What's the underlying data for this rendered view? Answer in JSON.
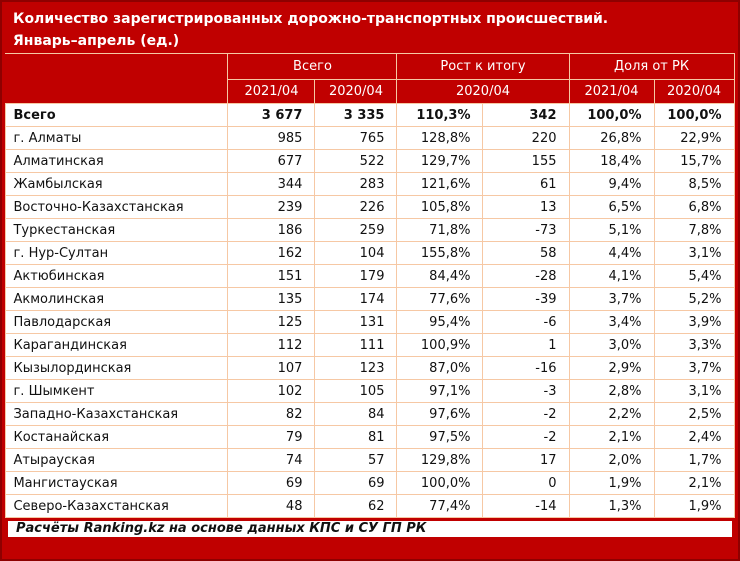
{
  "title": {
    "line1": "Количество зарегистрированных дорожно-транспортных происшествий.",
    "line2": "Январь–апрель (ед.)"
  },
  "chart_data": {
    "type": "table",
    "title": "Количество зарегистрированных дорожно-транспортных происшествий.",
    "subtitle": "Январь–апрель (ед.)",
    "column_groups": [
      {
        "label": "Всего",
        "span": 2
      },
      {
        "label": "Рост к итогу",
        "span": 2
      },
      {
        "label": "Доля от РК",
        "span": 2
      }
    ],
    "sub_headers": [
      "2021/04",
      "2020/04",
      "2020/04",
      "2021/04",
      "2020/04"
    ],
    "rows": [
      {
        "region": "Всего",
        "total_2021": "3 677",
        "total_2020": "3 335",
        "growth_pct": "110,3%",
        "growth_abs": "342",
        "share_2021": "100,0%",
        "share_2020": "100,0%",
        "emphasis": true
      },
      {
        "region": "г. Алматы",
        "total_2021": "985",
        "total_2020": "765",
        "growth_pct": "128,8%",
        "growth_abs": "220",
        "share_2021": "26,8%",
        "share_2020": "22,9%",
        "emphasis": false
      },
      {
        "region": "Алматинская",
        "total_2021": "677",
        "total_2020": "522",
        "growth_pct": "129,7%",
        "growth_abs": "155",
        "share_2021": "18,4%",
        "share_2020": "15,7%",
        "emphasis": false
      },
      {
        "region": "Жамбылская",
        "total_2021": "344",
        "total_2020": "283",
        "growth_pct": "121,6%",
        "growth_abs": "61",
        "share_2021": "9,4%",
        "share_2020": "8,5%",
        "emphasis": false
      },
      {
        "region": "Восточно-Казахстанская",
        "total_2021": "239",
        "total_2020": "226",
        "growth_pct": "105,8%",
        "growth_abs": "13",
        "share_2021": "6,5%",
        "share_2020": "6,8%",
        "emphasis": false
      },
      {
        "region": "Туркестанская",
        "total_2021": "186",
        "total_2020": "259",
        "growth_pct": "71,8%",
        "growth_abs": "-73",
        "share_2021": "5,1%",
        "share_2020": "7,8%",
        "emphasis": false
      },
      {
        "region": "г. Нур-Султан",
        "total_2021": "162",
        "total_2020": "104",
        "growth_pct": "155,8%",
        "growth_abs": "58",
        "share_2021": "4,4%",
        "share_2020": "3,1%",
        "emphasis": false
      },
      {
        "region": "Актюбинская",
        "total_2021": "151",
        "total_2020": "179",
        "growth_pct": "84,4%",
        "growth_abs": "-28",
        "share_2021": "4,1%",
        "share_2020": "5,4%",
        "emphasis": false
      },
      {
        "region": "Акмолинская",
        "total_2021": "135",
        "total_2020": "174",
        "growth_pct": "77,6%",
        "growth_abs": "-39",
        "share_2021": "3,7%",
        "share_2020": "5,2%",
        "emphasis": false
      },
      {
        "region": "Павлодарская",
        "total_2021": "125",
        "total_2020": "131",
        "growth_pct": "95,4%",
        "growth_abs": "-6",
        "share_2021": "3,4%",
        "share_2020": "3,9%",
        "emphasis": false
      },
      {
        "region": "Карагандинская",
        "total_2021": "112",
        "total_2020": "111",
        "growth_pct": "100,9%",
        "growth_abs": "1",
        "share_2021": "3,0%",
        "share_2020": "3,3%",
        "emphasis": false
      },
      {
        "region": "Кызылординская",
        "total_2021": "107",
        "total_2020": "123",
        "growth_pct": "87,0%",
        "growth_abs": "-16",
        "share_2021": "2,9%",
        "share_2020": "3,7%",
        "emphasis": false
      },
      {
        "region": "г. Шымкент",
        "total_2021": "102",
        "total_2020": "105",
        "growth_pct": "97,1%",
        "growth_abs": "-3",
        "share_2021": "2,8%",
        "share_2020": "3,1%",
        "emphasis": false
      },
      {
        "region": "Западно-Казахстанская",
        "total_2021": "82",
        "total_2020": "84",
        "growth_pct": "97,6%",
        "growth_abs": "-2",
        "share_2021": "2,2%",
        "share_2020": "2,5%",
        "emphasis": false
      },
      {
        "region": "Костанайская",
        "total_2021": "79",
        "total_2020": "81",
        "growth_pct": "97,5%",
        "growth_abs": "-2",
        "share_2021": "2,1%",
        "share_2020": "2,4%",
        "emphasis": false
      },
      {
        "region": "Атырауская",
        "total_2021": "74",
        "total_2020": "57",
        "growth_pct": "129,8%",
        "growth_abs": "17",
        "share_2021": "2,0%",
        "share_2020": "1,7%",
        "emphasis": false
      },
      {
        "region": "Мангистауская",
        "total_2021": "69",
        "total_2020": "69",
        "growth_pct": "100,0%",
        "growth_abs": "0",
        "share_2021": "1,9%",
        "share_2020": "2,1%",
        "emphasis": false
      },
      {
        "region": "Северо-Казахстанская",
        "total_2021": "48",
        "total_2020": "62",
        "growth_pct": "77,4%",
        "growth_abs": "-14",
        "share_2021": "1,3%",
        "share_2020": "1,9%",
        "emphasis": false
      }
    ],
    "footer": "Расчёты Ranking.kz на основе данных КПС и СУ ГП РК"
  },
  "colors": {
    "red": "#C00000",
    "dark_red": "#8E0000",
    "peach": "#F6C8A4",
    "white": "#FFFFFF",
    "ink": "#111111"
  }
}
